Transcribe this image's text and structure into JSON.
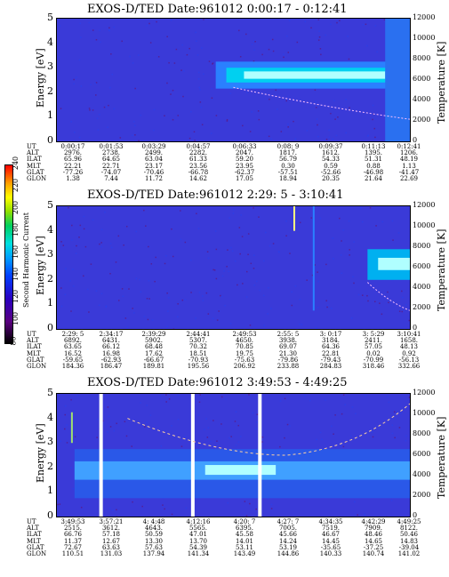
{
  "colorbar": {
    "label": "Second Harmonic Current",
    "ticks": [
      "80",
      "100",
      "120",
      "140",
      "160",
      "180",
      "200",
      "220",
      "240"
    ],
    "colors": [
      "#000000",
      "#5a007f",
      "#2a00c0",
      "#0040ff",
      "#00a0ff",
      "#00e0e0",
      "#00d060",
      "#90e000",
      "#ffff00",
      "#ffa000",
      "#ff0000"
    ]
  },
  "axes": {
    "energy_label": "Energy [eV]",
    "temperature_label": "Temperature [K]",
    "energy_ticks": [
      "0",
      "1",
      "2",
      "3",
      "4",
      "5"
    ],
    "temperature_ticks": [
      "0",
      "2000",
      "4000",
      "6000",
      "8000",
      "10000",
      "12000"
    ]
  },
  "row_labels": [
    "UT",
    "ALT",
    "ILAT",
    "MLT",
    "GLAT",
    "GLON"
  ],
  "panels": [
    {
      "title": "EXOS-D/TED   Date:961012  0:00:17 - 0:12:41",
      "columns": [
        [
          "0:00:17",
          "2976.",
          "65.96",
          "22.21",
          "-77.26",
          "1.38"
        ],
        [
          "0:01:53",
          "2738.",
          "64.65",
          "22.71",
          "-74.07",
          "7.44"
        ],
        [
          "0:03:29",
          "2499.",
          "63.04",
          "23.17",
          "-70.46",
          "11.72"
        ],
        [
          "0:04:57",
          "2282.",
          "61.33",
          "23.56",
          "-66.78",
          "14.62"
        ],
        [
          "0:06:33",
          "2047.",
          "59.20",
          "23.95",
          "-62.37",
          "17.05"
        ],
        [
          "0:08: 9",
          "1817.",
          "56.79",
          "0.30",
          "-57.51",
          "18.94"
        ],
        [
          "0:09:37",
          "1612.",
          "54.33",
          "0.59",
          "-52.66",
          "20.35"
        ],
        [
          "0:11:13",
          "1395.",
          "51.31",
          "0.88",
          "-46.98",
          "21.64"
        ],
        [
          "0:12:41",
          "1206.",
          "48.19",
          "1.13",
          "-41.47",
          "22.69"
        ]
      ]
    },
    {
      "title": "EXOS-D/TED   Date:961012  2:29: 5 - 3:10:41",
      "columns": [
        [
          "2:29: 5",
          "6892.",
          "63.65",
          "16.52",
          "-59.65",
          "184.36"
        ],
        [
          "2:34:17",
          "6431.",
          "66.12",
          "16.98",
          "-62.93",
          "186.47"
        ],
        [
          "2:39:29",
          "5902.",
          "68.48",
          "17.62",
          "-66.67",
          "189.81"
        ],
        [
          "2:44:41",
          "5307.",
          "70.32",
          "18.51",
          "-70.93",
          "195.56"
        ],
        [
          "2:49:53",
          "4650.",
          "70.85",
          "19.75",
          "-75.63",
          "206.92"
        ],
        [
          "2:55: 5",
          "3938.",
          "69.07",
          "21.30",
          "-79.86",
          "233.88"
        ],
        [
          "3: 0:17",
          "3184.",
          "64.36",
          "22.81",
          "-79.43",
          "284.83"
        ],
        [
          "3: 5:29",
          "2411.",
          "57.05",
          "0.02",
          "-70.99",
          "318.46"
        ],
        [
          "3:10:41",
          "1658.",
          "48.13",
          "0.92",
          "-56.13",
          "332.66"
        ]
      ]
    },
    {
      "title": "EXOS-D/TED   Date:961012  3:49:53 - 4:49:25",
      "columns": [
        [
          "3:49:53",
          "2515.",
          "66.76",
          "11.37",
          "72.67",
          "110.51"
        ],
        [
          "3:57:21",
          "3612.",
          "57.18",
          "12.67",
          "63.63",
          "131.03"
        ],
        [
          "4: 4:48",
          "4643.",
          "50.59",
          "13.30",
          "57.63",
          "137.94"
        ],
        [
          "4:12:16",
          "5565.",
          "47.01",
          "13.70",
          "54.39",
          "141.34"
        ],
        [
          "4:20: 7",
          "6395.",
          "45.58",
          "14.01",
          "53.11",
          "143.49"
        ],
        [
          "4:27: 7",
          "7005.",
          "45.66",
          "14.24",
          "53.19",
          "144.86"
        ],
        [
          "4:34:35",
          "7519.",
          "46.67",
          "14.45",
          "-35.65",
          "140.33"
        ],
        [
          "4:42:29",
          "7909.",
          "48.46",
          "14.65",
          "-37.25",
          "140.74"
        ],
        [
          "4:49:25",
          "8122.",
          "50.46",
          "14.83",
          "-39.04",
          "141.02"
        ]
      ]
    }
  ]
}
